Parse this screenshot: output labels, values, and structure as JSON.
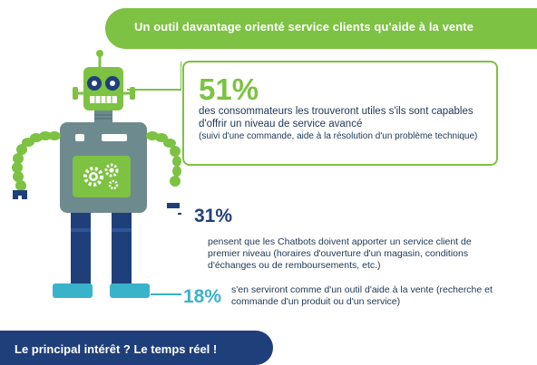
{
  "header": {
    "title": "Un outil davantage orienté service clients qu'aide à la vente"
  },
  "stat1": {
    "value": "51%",
    "description": "des consommateurs les trouveront utiles s'ils sont capables d'offrir un niveau de service avancé",
    "note": "(suivi d'une commande, aide à la résolution d'un problème technique)"
  },
  "stat2": {
    "value": "31%",
    "description": "pensent que les Chatbots doivent apporter un service client de premier niveau (horaires d'ouverture d'un magasin, conditions d'échanges ou de remboursements, etc.)"
  },
  "stat3": {
    "value": "18%",
    "description": "s'en serviront comme d'un outil d'aide à la vente (recherche et commande d'un produit ou d'un service)"
  },
  "footer": {
    "text": "Le principal intérêt ? Le temps réel !"
  },
  "colors": {
    "green": "#7dc242",
    "navy": "#1f3f7a",
    "teal": "#39b3c9",
    "text": "#1f3556",
    "gray": "#6d8a8f"
  },
  "icons": [
    "robot-illustration",
    "gear-icon"
  ]
}
